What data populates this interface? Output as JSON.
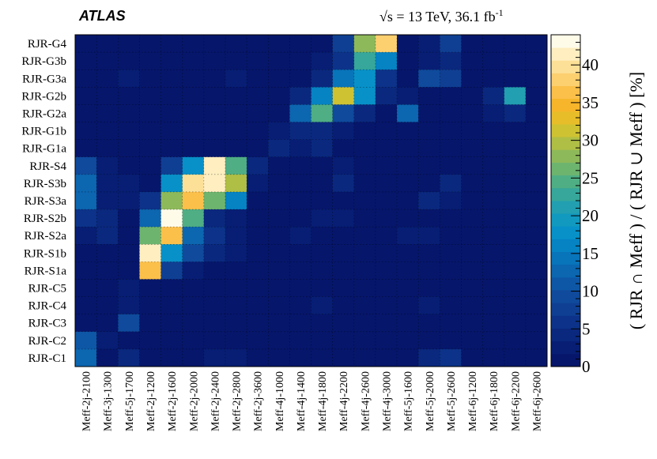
{
  "header": {
    "experiment": "ATLAS",
    "energy_prefix": "√s = 13 TeV, 36.1 fb",
    "energy_sup": "-1"
  },
  "colors": {
    "scale": [
      "#06166b",
      "#071e74",
      "#0a287e",
      "#0c3389",
      "#0f3f93",
      "#0f4a9c",
      "#0e57a6",
      "#0c66b0",
      "#0874ba",
      "#0583c3",
      "#0791c8",
      "#1199c0",
      "#229fb0",
      "#36a79a",
      "#4fae84",
      "#6db46f",
      "#8eb95a",
      "#afbe45",
      "#cec233",
      "#e8bd2a",
      "#f6b52a",
      "#fbc04a",
      "#fccf6f",
      "#fde097",
      "#feeec0",
      "#fffbe9"
    ]
  },
  "chart_data": {
    "type": "heatmap",
    "x_categories": [
      "Meff-2j-2100",
      "Meff-3j-1300",
      "Meff-5j-1700",
      "Meff-2j-1200",
      "Meff-2j-1600",
      "Meff-2j-2000",
      "Meff-2j-2400",
      "Meff-2j-2800",
      "Meff-2j-3600",
      "Meff-4j-1000",
      "Meff-4j-1400",
      "Meff-4j-1800",
      "Meff-4j-2200",
      "Meff-4j-2600",
      "Meff-4j-3000",
      "Meff-5j-1600",
      "Meff-5j-2000",
      "Meff-5j-2600",
      "Meff-6j-1200",
      "Meff-6j-1800",
      "Meff-6j-2200",
      "Meff-6j-2600"
    ],
    "y_categories": [
      "RJR-G4",
      "RJR-G3b",
      "RJR-G3a",
      "RJR-G2b",
      "RJR-G2a",
      "RJR-G1b",
      "RJR-G1a",
      "RJR-S4",
      "RJR-S3b",
      "RJR-S3a",
      "RJR-S2b",
      "RJR-S2a",
      "RJR-S1b",
      "RJR-S1a",
      "RJR-C5",
      "RJR-C4",
      "RJR-C3",
      "RJR-C2",
      "RJR-C1"
    ],
    "values": [
      [
        0,
        0,
        0,
        0,
        0,
        0,
        1,
        0,
        0,
        0,
        0,
        1,
        8,
        28,
        38,
        0,
        3,
        8,
        0,
        0,
        0,
        0
      ],
      [
        0,
        0,
        1,
        0,
        0,
        0,
        1,
        0,
        0,
        0,
        0,
        3,
        6,
        22,
        16,
        0,
        2,
        4,
        0,
        0,
        0,
        0
      ],
      [
        0,
        0,
        2,
        0,
        0,
        0,
        0,
        2,
        0,
        0,
        0,
        4,
        15,
        18,
        6,
        0,
        10,
        7,
        0,
        0,
        0,
        0
      ],
      [
        0,
        0,
        0,
        0,
        0,
        0,
        0,
        1,
        0,
        0,
        4,
        16,
        31,
        18,
        4,
        2,
        0,
        0,
        0,
        5,
        21,
        0
      ],
      [
        0,
        0,
        0,
        0,
        0,
        0,
        0,
        0,
        0,
        0,
        12,
        25,
        10,
        4,
        0,
        13,
        0,
        0,
        0,
        3,
        5,
        0
      ],
      [
        0,
        0,
        0,
        0,
        0,
        0,
        0,
        0,
        0,
        2,
        4,
        4,
        2,
        0,
        0,
        0,
        0,
        0,
        0,
        0,
        0,
        0
      ],
      [
        0,
        0,
        0,
        0,
        0,
        0,
        0,
        0,
        0,
        5,
        3,
        4,
        0,
        1,
        0,
        0,
        0,
        0,
        1,
        0,
        0,
        0
      ],
      [
        10,
        2,
        0,
        0,
        8,
        18,
        42,
        25,
        4,
        0,
        0,
        0,
        2,
        1,
        1,
        0,
        0,
        1,
        0,
        0,
        0,
        0
      ],
      [
        12,
        3,
        2,
        1,
        18,
        40,
        41,
        30,
        3,
        0,
        0,
        1,
        4,
        0,
        0,
        0,
        1,
        5,
        0,
        0,
        0,
        0
      ],
      [
        13,
        2,
        2,
        6,
        28,
        36,
        26,
        16,
        1,
        0,
        0,
        1,
        1,
        0,
        0,
        0,
        5,
        2,
        0,
        0,
        0,
        0
      ],
      [
        6,
        4,
        1,
        12,
        44,
        25,
        5,
        3,
        0,
        0,
        0,
        2,
        2,
        0,
        0,
        0,
        0,
        0,
        0,
        0,
        0,
        0
      ],
      [
        3,
        5,
        1,
        26,
        37,
        13,
        6,
        2,
        0,
        0,
        3,
        1,
        0,
        0,
        0,
        2,
        2,
        1,
        0,
        0,
        0,
        0
      ],
      [
        1,
        1,
        0,
        42,
        18,
        10,
        4,
        3,
        1,
        0,
        0,
        0,
        0,
        0,
        0,
        0,
        0,
        0,
        0,
        0,
        0,
        0
      ],
      [
        1,
        0,
        0,
        37,
        7,
        2,
        0,
        0,
        0,
        0,
        0,
        0,
        0,
        0,
        0,
        0,
        0,
        0,
        0,
        0,
        0,
        0
      ],
      [
        0,
        0,
        3,
        0,
        0,
        0,
        0,
        0,
        0,
        0,
        0,
        0,
        0,
        0,
        0,
        0,
        0,
        0,
        0,
        0,
        0,
        0
      ],
      [
        0,
        0,
        2,
        0,
        0,
        0,
        0,
        0,
        0,
        0,
        0,
        3,
        0,
        0,
        0,
        0,
        2,
        0,
        0,
        0,
        0,
        0
      ],
      [
        0,
        0,
        10,
        0,
        0,
        0,
        0,
        0,
        0,
        0,
        0,
        0,
        0,
        0,
        0,
        0,
        0,
        0,
        0,
        0,
        0,
        0
      ],
      [
        11,
        2,
        1,
        0,
        0,
        0,
        0,
        0,
        1,
        0,
        0,
        0,
        0,
        0,
        0,
        0,
        0,
        0,
        0,
        0,
        0,
        0
      ],
      [
        13,
        1,
        4,
        0,
        0,
        0,
        3,
        3,
        1,
        0,
        0,
        0,
        0,
        0,
        0,
        0,
        4,
        6,
        0,
        0,
        0,
        0
      ]
    ],
    "z_range": [
      0,
      44
    ],
    "colorbar_ticks": [
      0,
      5,
      10,
      15,
      20,
      25,
      30,
      35,
      40
    ],
    "zlabel": "( RJR ∩ Meff ) / ( RJR ∪ Meff ) [%]"
  }
}
